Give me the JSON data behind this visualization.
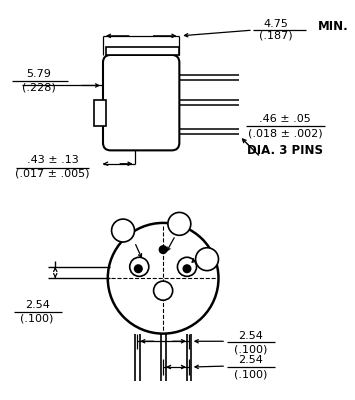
{
  "bg_color": "#ffffff",
  "line_color": "#000000",
  "figsize": [
    3.55,
    4.0
  ],
  "dpi": 100
}
